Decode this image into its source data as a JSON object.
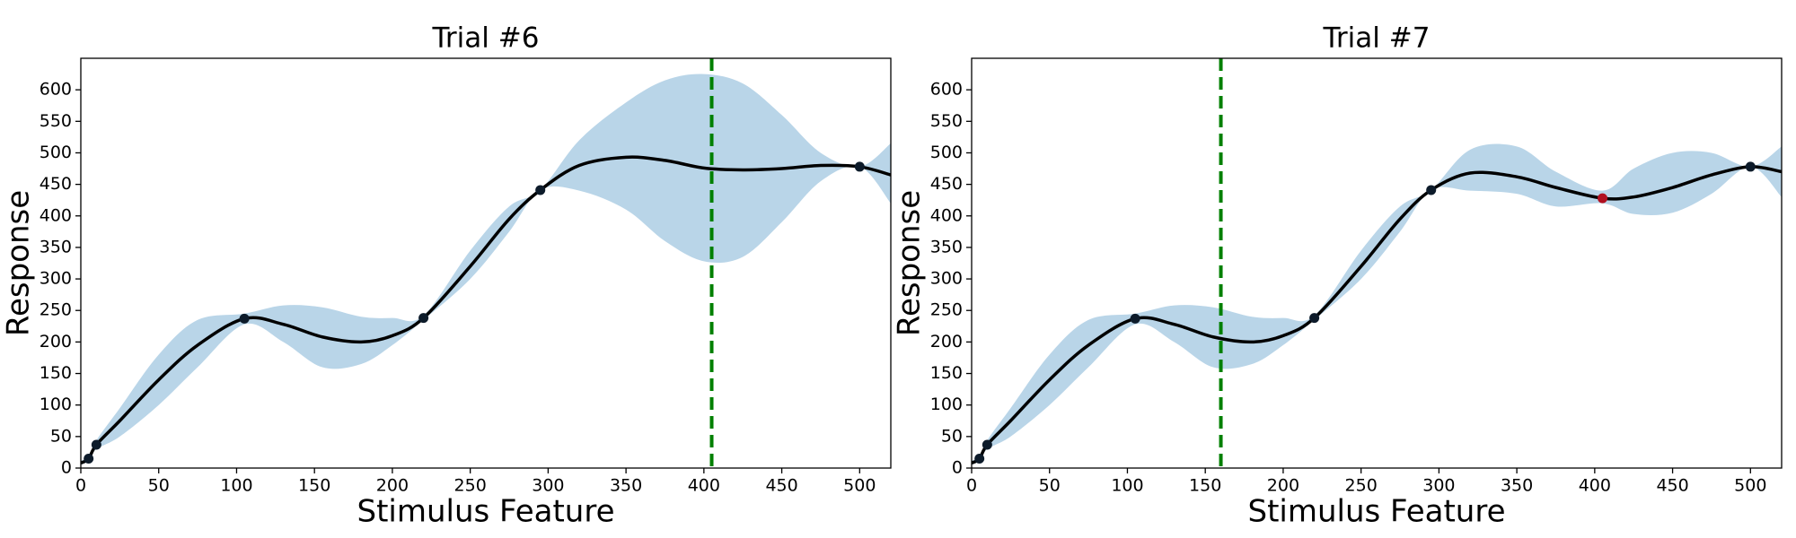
{
  "chart_data": [
    {
      "type": "line",
      "title": "Trial #6",
      "xlabel": "Stimulus Feature",
      "ylabel": "Response",
      "xlim": [
        0,
        520
      ],
      "ylim": [
        0,
        650
      ],
      "xticks": [
        0,
        50,
        100,
        150,
        200,
        250,
        300,
        350,
        400,
        450,
        500
      ],
      "yticks": [
        0,
        50,
        100,
        150,
        200,
        250,
        300,
        350,
        400,
        450,
        500,
        550,
        600
      ],
      "x": [
        0,
        5,
        10,
        25,
        50,
        75,
        105,
        130,
        155,
        180,
        200,
        220,
        250,
        275,
        295,
        320,
        350,
        375,
        400,
        425,
        450,
        475,
        500,
        520
      ],
      "mean": [
        8,
        15,
        37,
        75,
        140,
        195,
        237,
        228,
        208,
        200,
        210,
        238,
        320,
        395,
        441,
        480,
        493,
        488,
        476,
        473,
        475,
        480,
        478,
        465
      ],
      "lower": [
        5,
        12,
        30,
        50,
        100,
        160,
        228,
        200,
        160,
        165,
        195,
        235,
        300,
        375,
        441,
        440,
        410,
        360,
        328,
        335,
        390,
        455,
        478,
        420
      ],
      "upper": [
        12,
        18,
        44,
        95,
        180,
        235,
        245,
        258,
        255,
        240,
        238,
        242,
        345,
        415,
        441,
        520,
        580,
        615,
        625,
        610,
        560,
        500,
        478,
        515
      ],
      "line_color": "#000000",
      "band_color": "#b9d5e8",
      "points": {
        "x": [
          5,
          10,
          105,
          220,
          295,
          500
        ],
        "y": [
          15,
          37,
          237,
          238,
          441,
          478
        ],
        "colors": [
          "#0d1b2a",
          "#0d1b2a",
          "#0d1b2a",
          "#0d1b2a",
          "#0d1b2a",
          "#0d1b2a"
        ]
      },
      "vline": {
        "x": 405,
        "color": "#008000"
      }
    },
    {
      "type": "line",
      "title": "Trial #7",
      "xlabel": "Stimulus Feature",
      "ylabel": "Response",
      "xlim": [
        0,
        520
      ],
      "ylim": [
        0,
        650
      ],
      "xticks": [
        0,
        50,
        100,
        150,
        200,
        250,
        300,
        350,
        400,
        450,
        500
      ],
      "yticks": [
        0,
        50,
        100,
        150,
        200,
        250,
        300,
        350,
        400,
        450,
        500,
        550,
        600
      ],
      "x": [
        0,
        5,
        10,
        25,
        50,
        75,
        105,
        130,
        155,
        180,
        200,
        220,
        250,
        275,
        295,
        320,
        350,
        375,
        405,
        425,
        450,
        475,
        500,
        520
      ],
      "mean": [
        8,
        15,
        37,
        75,
        140,
        195,
        237,
        228,
        208,
        200,
        210,
        238,
        320,
        395,
        441,
        468,
        462,
        445,
        428,
        430,
        445,
        465,
        478,
        470
      ],
      "lower": [
        5,
        12,
        30,
        50,
        100,
        160,
        228,
        200,
        160,
        165,
        195,
        235,
        300,
        375,
        441,
        440,
        435,
        415,
        420,
        403,
        405,
        435,
        478,
        430
      ],
      "upper": [
        12,
        18,
        44,
        95,
        180,
        235,
        245,
        258,
        255,
        240,
        238,
        242,
        345,
        415,
        441,
        505,
        510,
        470,
        440,
        475,
        500,
        500,
        478,
        510
      ],
      "line_color": "#000000",
      "band_color": "#b9d5e8",
      "points": {
        "x": [
          5,
          10,
          105,
          220,
          295,
          405,
          500
        ],
        "y": [
          15,
          37,
          237,
          238,
          441,
          428,
          478
        ],
        "colors": [
          "#0d1b2a",
          "#0d1b2a",
          "#0d1b2a",
          "#0d1b2a",
          "#0d1b2a",
          "#b01020",
          "#0d1b2a"
        ]
      },
      "vline": {
        "x": 160,
        "color": "#008000"
      }
    }
  ]
}
